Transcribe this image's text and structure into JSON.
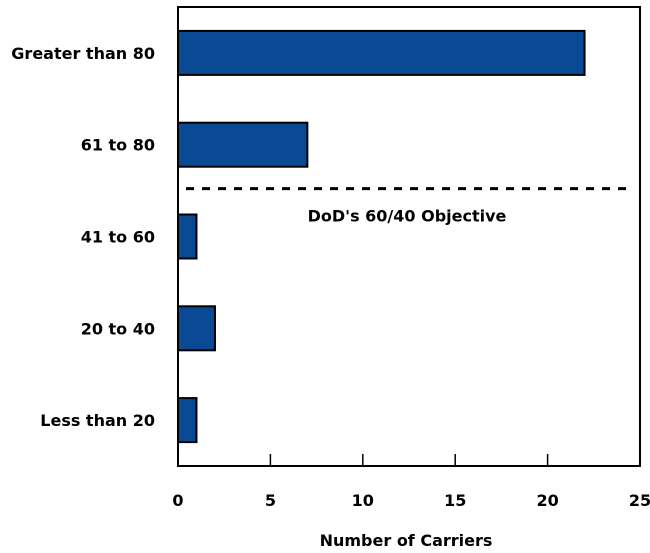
{
  "chart_data": {
    "type": "bar",
    "orientation": "horizontal",
    "categories": [
      "Greater than 80",
      "61 to 80",
      "41 to 60",
      "20 to 40",
      "Less than 20"
    ],
    "values": [
      22,
      7,
      1,
      2,
      1
    ],
    "xlabel": "Number of Carriers",
    "ylabel": "",
    "xlim": [
      0,
      25
    ],
    "xticks": [
      0,
      5,
      10,
      15,
      20,
      25
    ],
    "grid": false,
    "legend": "none",
    "bar_color": "#0a4a94",
    "bar_edge_color": "#000000",
    "reference_line": {
      "position_between": [
        "61 to 80",
        "41 to 60"
      ],
      "style": "dashed",
      "label": "DoD's 60/40 Objective"
    }
  }
}
